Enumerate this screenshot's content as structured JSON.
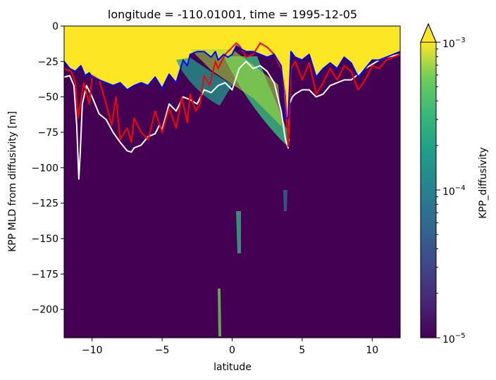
{
  "chart_data": {
    "type": "heatmap",
    "title": "longitude = -110.01001, time = 1995-12-05",
    "xlabel": "latitude",
    "ylabel": "KPP MLD from diffusivity [m]",
    "xlim": [
      -12,
      12
    ],
    "ylim": [
      -220,
      0
    ],
    "x_ticks": [
      -10,
      -5,
      0,
      5,
      10
    ],
    "x_tick_labels": [
      "−10",
      "−5",
      "0",
      "5",
      "10"
    ],
    "y_ticks": [
      0,
      -25,
      -50,
      -75,
      -100,
      -125,
      -150,
      -175,
      -200
    ],
    "y_tick_labels": [
      "0",
      "−25",
      "−50",
      "−75",
      "−100",
      "−125",
      "−150",
      "−175",
      "−200"
    ],
    "colorbar": {
      "label": "KPP_diffusivity",
      "scale": "log",
      "range": [
        1e-05,
        0.001
      ],
      "extend": "max",
      "colormap": "viridis",
      "tick_labels": [
        {
          "base": "10",
          "exp": "−3"
        },
        {
          "base": "10",
          "exp": "−4"
        },
        {
          "base": "10",
          "exp": "−5"
        }
      ]
    },
    "series": [
      {
        "color": "#ffffff",
        "x": [
          -12,
          -11.6,
          -11.3,
          -11.1,
          -10.95,
          -10.85,
          -10.7,
          -10.4,
          -10,
          -9.5,
          -9,
          -8.5,
          -8,
          -7.5,
          -7.2,
          -7,
          -6.5,
          -6,
          -5.5,
          -5.2,
          -5,
          -4.5,
          -4,
          -3.5,
          -3,
          -2.5,
          -2,
          -1.5,
          -1,
          -0.5,
          0,
          0.5,
          1,
          1.5,
          2,
          2.5,
          3,
          3.5,
          3.8,
          4,
          4.1,
          4.3,
          4.5,
          5,
          5.5,
          6,
          6.5,
          7,
          7.5,
          8,
          8.5,
          9,
          9.5,
          10,
          10.5,
          11,
          11.5,
          12
        ],
        "y": [
          -36,
          -35,
          -42,
          -70,
          -108,
          -90,
          -55,
          -42,
          -50,
          -62,
          -66,
          -75,
          -82,
          -88,
          -89,
          -86,
          -84,
          -78,
          -76,
          -70,
          -73,
          -55,
          -60,
          -50,
          -52,
          -55,
          -45,
          -47,
          -42,
          -40,
          -45,
          -30,
          -25,
          -30,
          -28,
          -32,
          -40,
          -60,
          -80,
          -86,
          -55,
          -50,
          -48,
          -45,
          -45,
          -50,
          -48,
          -42,
          -40,
          -38,
          -38,
          -34,
          -30,
          -27,
          -24,
          -22,
          -21,
          -20
        ]
      },
      {
        "color": "#ff0000",
        "x": [
          -12,
          -11.5,
          -11.2,
          -11,
          -10.6,
          -10.2,
          -10,
          -9.5,
          -9,
          -8.6,
          -8.3,
          -8,
          -7.5,
          -7.2,
          -7,
          -6.5,
          -6,
          -5.5,
          -5,
          -4.5,
          -4,
          -3.6,
          -3.2,
          -3,
          -2.6,
          -2.3,
          -2,
          -1.6,
          -1.2,
          -1,
          -0.5,
          0,
          0.3,
          0.6,
          1,
          1.5,
          2,
          2.5,
          3,
          3.5,
          3.8,
          4,
          4.2,
          4.5,
          5,
          5.5,
          6,
          6.5,
          7,
          7.5,
          8,
          8.5,
          9,
          9.5,
          10,
          10.5,
          11,
          11.5,
          12
        ],
        "y": [
          -30,
          -32,
          -40,
          -65,
          -40,
          -55,
          -35,
          -38,
          -55,
          -70,
          -50,
          -80,
          -72,
          -82,
          -65,
          -75,
          -80,
          -60,
          -75,
          -58,
          -72,
          -50,
          -68,
          -48,
          -60,
          -55,
          -35,
          -42,
          -25,
          -30,
          -20,
          -15,
          -12,
          -15,
          -22,
          -20,
          -12,
          -15,
          -20,
          -30,
          -50,
          -85,
          -30,
          -25,
          -38,
          -26,
          -48,
          -40,
          -30,
          -38,
          -28,
          -32,
          -45,
          -38,
          -28,
          -30,
          -24,
          -22,
          -20
        ]
      },
      {
        "color": "#0000ff",
        "x": [
          -12,
          -11.6,
          -11.2,
          -10.8,
          -10.5,
          -10.2,
          -10,
          -9.5,
          -9,
          -8.5,
          -8,
          -7.5,
          -7,
          -6.5,
          -6,
          -5.5,
          -5,
          -4.5,
          -4,
          -3.5,
          -3.2,
          -3,
          -2.5,
          -2,
          -1.5,
          -1.2,
          -1,
          -0.6,
          -0.3,
          0,
          0.3,
          0.6,
          1,
          1.5,
          2,
          2.5,
          3,
          3.5,
          3.8,
          4,
          4.2,
          4.5,
          5,
          5.5,
          6,
          6.5,
          7,
          7.5,
          8,
          8.5,
          9,
          9.5,
          10,
          10.5,
          11,
          11.5,
          12
        ],
        "y": [
          -25,
          -30,
          -32,
          -28,
          -35,
          -33,
          -36,
          -38,
          -40,
          -42,
          -40,
          -45,
          -42,
          -40,
          -42,
          -36,
          -44,
          -34,
          -40,
          -24,
          -28,
          -20,
          -18,
          -18,
          -22,
          -18,
          -24,
          -20,
          -22,
          -20,
          -14,
          -16,
          -18,
          -18,
          -20,
          -22,
          -20,
          -28,
          -65,
          -65,
          -18,
          -22,
          -24,
          -20,
          -36,
          -30,
          -26,
          -30,
          -22,
          -26,
          -36,
          -30,
          -24,
          -24,
          -22,
          -20,
          -18
        ]
      }
    ]
  }
}
